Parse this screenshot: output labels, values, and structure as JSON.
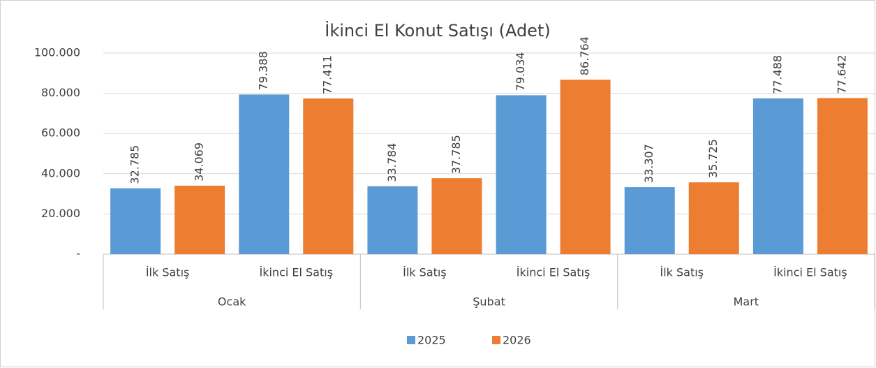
{
  "chart_data": {
    "type": "bar",
    "title": "İkinci El Konut Satışı (Adet)",
    "categories": [
      "İlk Satış",
      "İkinci El Satış",
      "İlk Satış",
      "İkinci El Satış",
      "İlk Satış",
      "İkinci El Satış"
    ],
    "category_groups": [
      "Ocak",
      "Şubat",
      "Mart"
    ],
    "series": [
      {
        "name": "2025",
        "color": "#5b9bd5",
        "values": [
          32785,
          79388,
          33784,
          79034,
          33307,
          77488
        ],
        "value_labels": [
          "32.785",
          "79.388",
          "33.784",
          "79.034",
          "33.307",
          "77.488"
        ]
      },
      {
        "name": "2026",
        "color": "#ed7d31",
        "values": [
          34069,
          77411,
          37785,
          86764,
          35725,
          77642
        ],
        "value_labels": [
          "34.069",
          "77.411",
          "37.785",
          "86.764",
          "35.725",
          "77.642"
        ]
      }
    ],
    "ylim": [
      0,
      100000
    ],
    "yticks": [
      {
        "value": 0,
        "label": "-"
      },
      {
        "value": 20000,
        "label": "20.000"
      },
      {
        "value": 40000,
        "label": "40.000"
      },
      {
        "value": 60000,
        "label": "60.000"
      },
      {
        "value": 80000,
        "label": "80.000"
      },
      {
        "value": 100000,
        "label": "100.000"
      }
    ],
    "grid": true,
    "legend": "bottom"
  }
}
